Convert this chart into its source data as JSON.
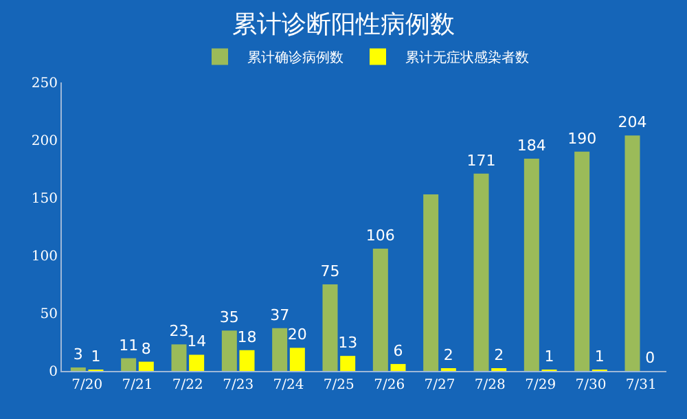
{
  "chart_data": {
    "type": "bar",
    "title": "累计诊断阳性病例数",
    "categories": [
      "7/20",
      "7/21",
      "7/22",
      "7/23",
      "7/24",
      "7/25",
      "7/26",
      "7/27",
      "7/28",
      "7/29",
      "7/30",
      "7/31"
    ],
    "series": [
      {
        "name": "累计确诊病例数",
        "color": "#9bbb59",
        "values": [
          3,
          11,
          23,
          35,
          37,
          75,
          106,
          153,
          171,
          184,
          190,
          204
        ],
        "value_labels": [
          "3",
          "11",
          "23",
          "35",
          "37",
          "75",
          "106",
          null,
          "171",
          "184",
          "190",
          "204"
        ]
      },
      {
        "name": "累计无症状感染者数",
        "color": "#ffff00",
        "values": [
          1,
          8,
          14,
          18,
          20,
          13,
          6,
          2,
          2,
          1,
          1,
          0
        ],
        "value_labels": [
          "1",
          "8",
          "14",
          "18",
          "20",
          "13",
          "6",
          "2",
          "2",
          "1",
          "1",
          "0"
        ]
      }
    ],
    "ylim": [
      0,
      250
    ],
    "yticks": [
      0,
      50,
      100,
      150,
      200,
      250
    ],
    "grid": false,
    "legend": "top"
  }
}
